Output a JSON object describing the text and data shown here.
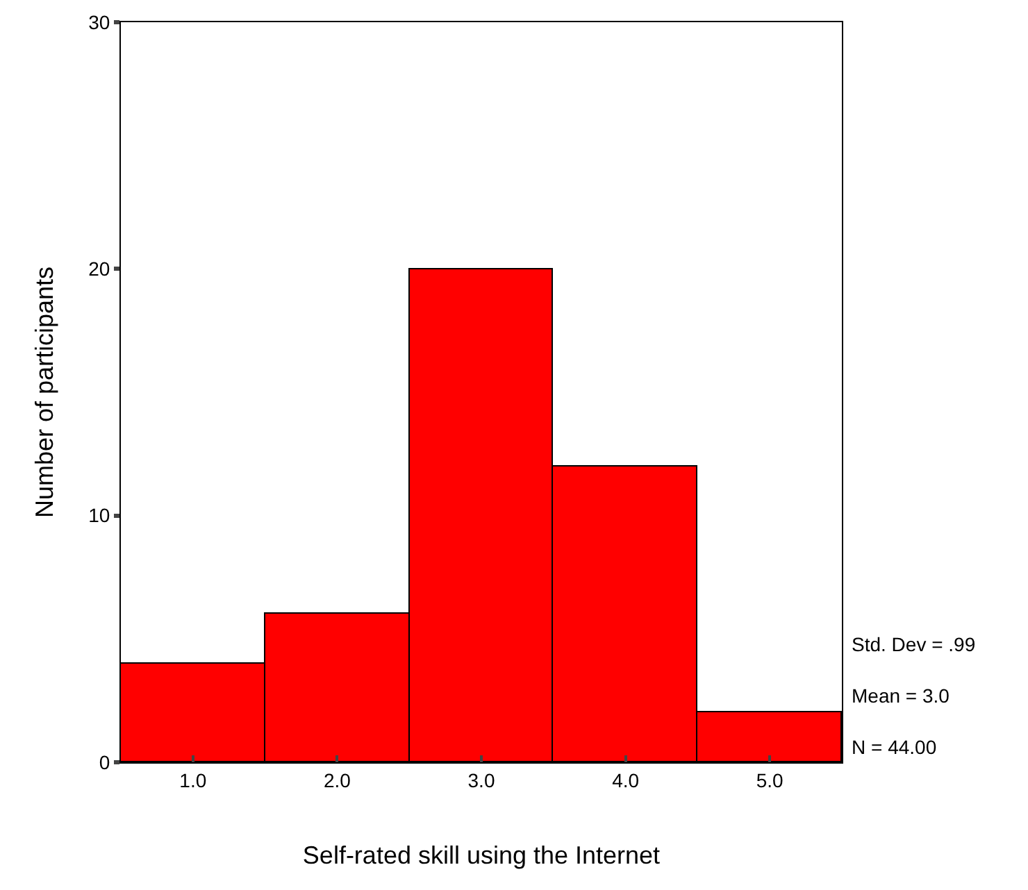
{
  "chart_data": {
    "type": "histogram",
    "xlabel": "Self-rated skill using the Internet",
    "ylabel": "Number of participants",
    "bins": [
      0.5,
      1.5,
      2.5,
      3.5,
      4.5,
      5.5
    ],
    "values": [
      4,
      6,
      20,
      12,
      2
    ],
    "color": "#ff0000",
    "xlim": [
      0.5,
      5.5
    ],
    "xticks": [
      {
        "value": 1,
        "label": "1.0"
      },
      {
        "value": 2,
        "label": "2.0"
      },
      {
        "value": 3,
        "label": "3.0"
      },
      {
        "value": 4,
        "label": "4.0"
      },
      {
        "value": 5,
        "label": "5.0"
      }
    ],
    "ylim": [
      0,
      30
    ],
    "yticks": [
      0,
      10,
      20,
      30
    ],
    "grid": false,
    "annotations": [
      "Std. Dev = .99",
      "Mean = 3.0",
      "N = 44.00"
    ]
  }
}
